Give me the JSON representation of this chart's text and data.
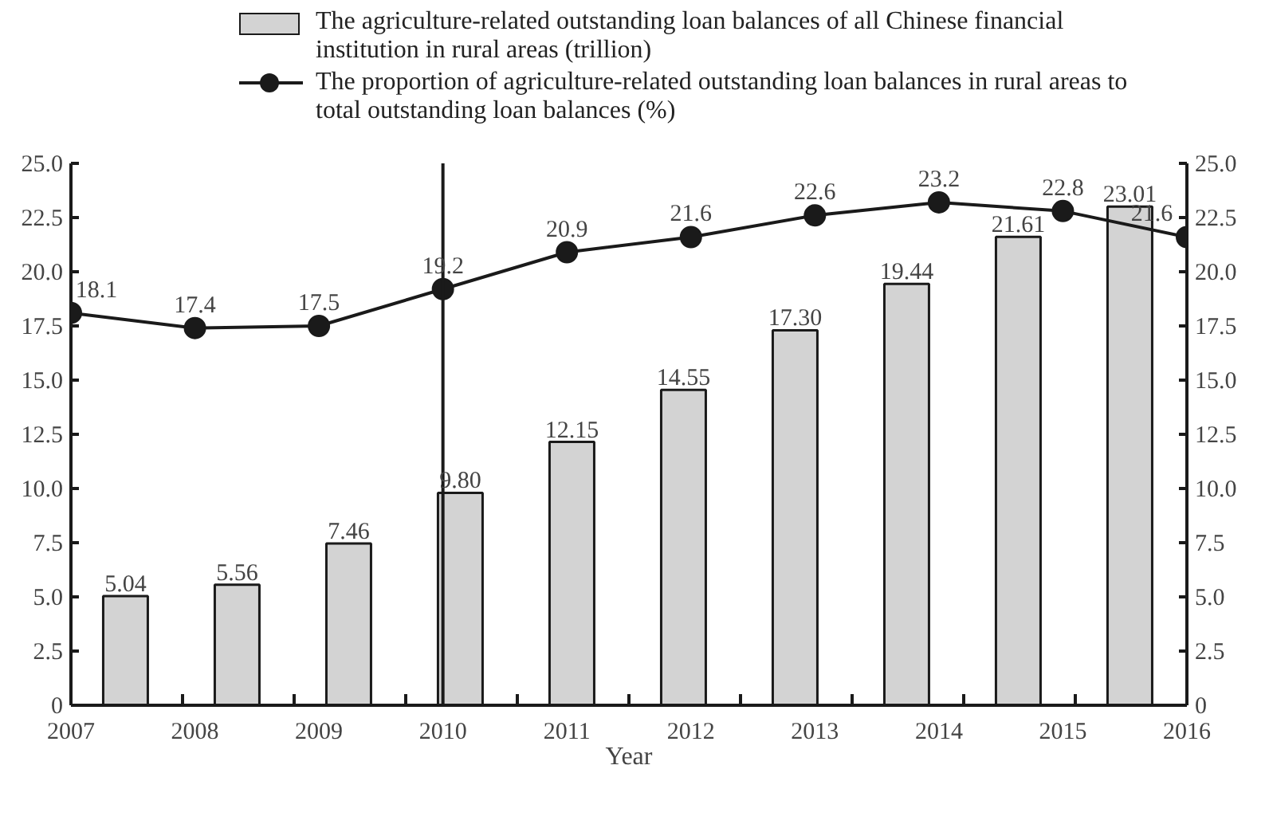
{
  "chart_data": {
    "type": "bar",
    "xlabel": "Year",
    "xlim": [
      2007,
      2016
    ],
    "xticks": [
      2007,
      2008,
      2009,
      2010,
      2011,
      2012,
      2013,
      2014,
      2015,
      2016,
      {
        "value": 2007.9,
        "label": null
      },
      {
        "value": 2008.8,
        "label": null
      },
      {
        "value": 2009.7,
        "label": null
      },
      {
        "value": 2010.6,
        "label": null
      },
      {
        "value": 2011.5,
        "label": null
      },
      {
        "value": 2012.4,
        "label": null
      },
      {
        "value": 2013.3,
        "label": null
      },
      {
        "value": 2014.2,
        "label": null
      },
      {
        "value": 2015.1,
        "label": null
      }
    ],
    "ylim": [
      0,
      25
    ],
    "yticks": [
      0,
      2.5,
      {
        "value": 5,
        "label": "5.0"
      },
      7.5,
      {
        "value": 10,
        "label": "10.0"
      },
      12.5,
      {
        "value": 15,
        "label": "15.0"
      },
      17.5,
      {
        "value": 20,
        "label": "20.0"
      },
      22.5,
      {
        "value": 25,
        "label": "25.0"
      }
    ],
    "y2lim": [
      0,
      25
    ],
    "y2ticks": [
      0,
      2.5,
      {
        "value": 5,
        "label": "5.0"
      },
      7.5,
      {
        "value": 10,
        "label": "10.0"
      },
      12.5,
      {
        "value": 15,
        "label": "15.0"
      },
      17.5,
      {
        "value": 20,
        "label": "20.0"
      },
      22.5,
      {
        "value": 25,
        "label": "25.0"
      }
    ],
    "series": [
      {
        "type": "bar",
        "name": "The agriculture-related outstanding loan balances of all Chinese financial institution in rural areas (trillion)",
        "color": "#d3d3d3",
        "x": [
          2007.44,
          2008.34,
          2009.24,
          2010.14,
          2011.04,
          2011.94,
          2012.84,
          2013.74,
          2014.64,
          2015.54
        ],
        "values": [
          5.04,
          5.56,
          7.46,
          9.8,
          12.15,
          14.55,
          17.3,
          19.44,
          21.61,
          23.01
        ],
        "value_labels": [
          "5.04",
          "5.56",
          "7.46",
          "9.80",
          "12.15",
          "14.55",
          "17.30",
          "19.44",
          "21.61",
          "23.01"
        ]
      },
      {
        "type": "line",
        "name": "The proportion of agriculture-related outstanding loan balances in rural areas to total outstanding loan balances (%)",
        "color": "#1a1a1a",
        "x": [
          2007,
          2008,
          2009,
          2010,
          2011,
          2012,
          2013,
          2014,
          2015,
          2016
        ],
        "values": [
          18.1,
          17.4,
          17.5,
          19.2,
          20.9,
          21.6,
          22.6,
          23.2,
          22.8,
          21.6
        ],
        "value_labels": [
          "18.1",
          "17.4",
          "17.5",
          "19.2",
          "20.9",
          "21.6",
          "22.6",
          "23.2",
          "22.8",
          "21.6"
        ]
      }
    ],
    "ref_lines": [
      {
        "axis": "x",
        "value": 2010,
        "color": "#1a1a1a"
      }
    ],
    "legend": "top",
    "marker": "circle",
    "line_style": "solid",
    "grid": false
  }
}
